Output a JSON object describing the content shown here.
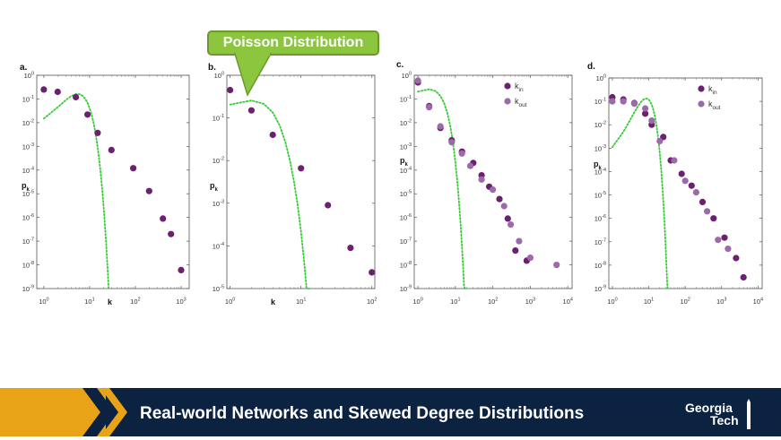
{
  "slide": {
    "title": "Real-world Networks and Skewed Degree Distributions",
    "callout": "Poisson Distribution",
    "logo_line1": "Georgia",
    "logo_line2": "Tech",
    "colors": {
      "navy": "#0b2340",
      "gold": "#e8a317",
      "callout_green": "#8cc63f",
      "poisson_green": "#33cc33",
      "dot_purple": "#6b2170",
      "dot_light_purple": "#9b6aa8"
    }
  },
  "chart_data": [
    {
      "panel_label": "a.",
      "type": "scatter",
      "xscale": "log",
      "yscale": "log",
      "xlim": [
        0.7,
        1500
      ],
      "ylim": [
        1e-09,
        1
      ],
      "xlabel": "k",
      "ylabel": "pk",
      "x_ticks": [
        "10^0",
        "10^1",
        "10^2",
        "10^3"
      ],
      "y_ticks": [
        "10^0",
        "10^-1",
        "10^-2",
        "10^-3",
        "10^-4",
        "10^-5",
        "10^-6",
        "10^-7",
        "10^-8",
        "10^-9"
      ],
      "series": [
        {
          "points": [
            [
              1,
              0.25
            ],
            [
              2,
              0.2
            ],
            [
              5,
              0.12
            ],
            [
              9,
              0.022
            ],
            [
              15,
              0.0037
            ],
            [
              30,
              0.0007
            ],
            [
              90,
              0.00012
            ],
            [
              200,
              1.3e-05
            ],
            [
              400,
              9e-07
            ],
            [
              600,
              2e-07
            ],
            [
              1000,
              6e-09
            ]
          ],
          "color": "#6b2170"
        }
      ],
      "poisson": {
        "mean": 6
      }
    },
    {
      "panel_label": "b.",
      "type": "scatter",
      "xscale": "log",
      "yscale": "log",
      "xlim": [
        0.9,
        110
      ],
      "ylim": [
        1e-05,
        1
      ],
      "xlabel": "k",
      "ylabel": "pk",
      "x_ticks": [
        "10^0",
        "10^1",
        "10^2"
      ],
      "y_ticks": [
        "10^0",
        "10^-1",
        "10^-2",
        "10^-3",
        "10^-4",
        "10^-5"
      ],
      "series": [
        {
          "points": [
            [
              1,
              0.45
            ],
            [
              2,
              0.15
            ],
            [
              4,
              0.04
            ],
            [
              10,
              0.0066
            ],
            [
              24,
              0.0009
            ],
            [
              50,
              9e-05
            ],
            [
              100,
              2.4e-05
            ]
          ],
          "color": "#6b2170"
        }
      ],
      "poisson": {
        "mean": 2.5
      }
    },
    {
      "panel_label": "c.",
      "type": "scatter",
      "xscale": "log",
      "yscale": "log",
      "xlim": [
        0.8,
        13000
      ],
      "ylim": [
        1e-09,
        1
      ],
      "xlabel": "",
      "ylabel": "pk",
      "x_ticks": [
        "10^0",
        "10^1",
        "10^2",
        "10^3",
        "10^4"
      ],
      "y_ticks": [
        "10^0",
        "10^-1",
        "10^-2",
        "10^-3",
        "10^-4",
        "10^-5",
        "10^-6",
        "10^-7",
        "10^-8",
        "10^-9"
      ],
      "legend": [
        {
          "base": "k",
          "sub": "in",
          "color": "#6b2170"
        },
        {
          "base": "k",
          "sub": "out",
          "color": "#9b6aa8"
        }
      ],
      "series": [
        {
          "name": "k_in",
          "points": [
            [
              1,
              0.5
            ],
            [
              2,
              0.05
            ],
            [
              4,
              0.006
            ],
            [
              8,
              0.0018
            ],
            [
              15,
              0.0006
            ],
            [
              30,
              0.0002
            ],
            [
              50,
              6e-05
            ],
            [
              80,
              2e-05
            ],
            [
              150,
              6e-06
            ],
            [
              250,
              9e-07
            ],
            [
              400,
              4e-08
            ],
            [
              800,
              1.5e-08
            ]
          ],
          "color": "#6b2170"
        },
        {
          "name": "k_out",
          "points": [
            [
              1,
              0.6
            ],
            [
              2,
              0.045
            ],
            [
              4,
              0.007
            ],
            [
              8,
              0.0015
            ],
            [
              15,
              0.0005
            ],
            [
              25,
              0.00015
            ],
            [
              50,
              4e-05
            ],
            [
              100,
              1.5e-05
            ],
            [
              200,
              3e-06
            ],
            [
              300,
              5e-07
            ],
            [
              500,
              1e-07
            ],
            [
              1000,
              2e-08
            ],
            [
              5000,
              1e-08
            ]
          ],
          "color": "#9b6aa8"
        }
      ],
      "poisson": {
        "mean": 2.5
      }
    },
    {
      "panel_label": "d.",
      "type": "scatter",
      "xscale": "log",
      "yscale": "log",
      "xlim": [
        0.8,
        13000
      ],
      "ylim": [
        1e-09,
        1
      ],
      "xlabel": "",
      "ylabel": "pk",
      "x_ticks": [
        "10^0",
        "10^1",
        "10^2",
        "10^3",
        "10^4"
      ],
      "y_ticks": [
        "10^0",
        "10^-1",
        "10^-2",
        "10^-3",
        "10^-4",
        "10^-5",
        "10^-6",
        "10^-7",
        "10^-8",
        "10^-9"
      ],
      "legend": [
        {
          "base": "k",
          "sub": "in",
          "color": "#6b2170"
        },
        {
          "base": "k",
          "sub": "out",
          "color": "#9b6aa8"
        }
      ],
      "series": [
        {
          "name": "k_in",
          "points": [
            [
              1,
              0.15
            ],
            [
              2,
              0.12
            ],
            [
              4,
              0.085
            ],
            [
              8,
              0.03
            ],
            [
              12,
              0.01
            ],
            [
              25,
              0.003
            ],
            [
              40,
              0.0003
            ],
            [
              80,
              8e-05
            ],
            [
              150,
              2.5e-05
            ],
            [
              300,
              5e-06
            ],
            [
              600,
              1e-06
            ],
            [
              1200,
              1.5e-07
            ],
            [
              2500,
              2e-08
            ],
            [
              4000,
              3e-09
            ]
          ],
          "color": "#6b2170"
        },
        {
          "name": "k_out",
          "points": [
            [
              1,
              0.1
            ],
            [
              2,
              0.1
            ],
            [
              4,
              0.08
            ],
            [
              8,
              0.05
            ],
            [
              12,
              0.015
            ],
            [
              20,
              0.002
            ],
            [
              50,
              0.0003
            ],
            [
              100,
              4e-05
            ],
            [
              200,
              1.3e-05
            ],
            [
              400,
              2e-06
            ],
            [
              800,
              1.2e-07
            ],
            [
              1500,
              5e-08
            ]
          ],
          "color": "#9b6aa8"
        }
      ],
      "poisson": {
        "mean": 9
      }
    }
  ]
}
